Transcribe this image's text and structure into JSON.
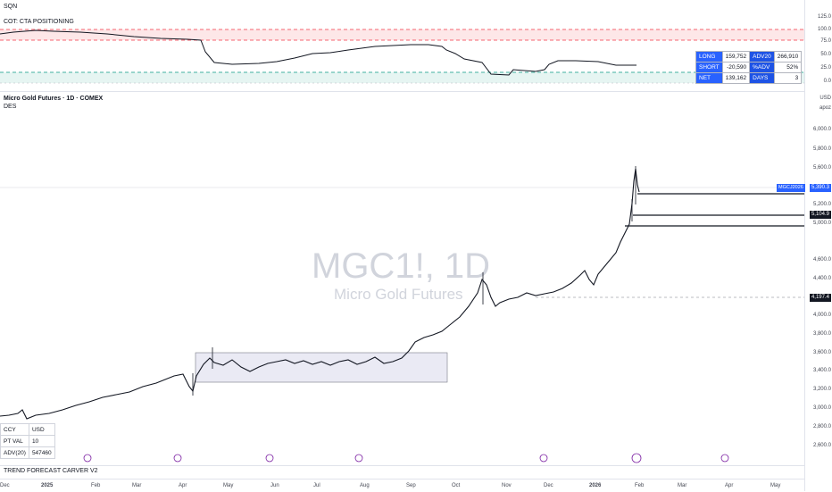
{
  "top_label": "SQN",
  "cot": {
    "title": "COT: CTA POSITIONING",
    "axis": [
      "125.0",
      "100.0",
      "75.0",
      "50.0",
      "25.0",
      "0.0"
    ],
    "table": [
      {
        "k1": "LONG",
        "v1": "159,752",
        "k2": "ADV20",
        "v2": "266,910"
      },
      {
        "k1": "SHORT",
        "v1": "-20,590",
        "k2": "%ADV",
        "v2": "52%"
      },
      {
        "k1": "NET",
        "v1": "139,162",
        "k2": "DAYS",
        "v2": "3"
      }
    ]
  },
  "main": {
    "title": "Micro Gold Futures · 1D · COMEX",
    "subtitle": "DES",
    "currency": "USD",
    "scale_mode": "apoz",
    "watermark_symbol": "MGC1!, 1D",
    "watermark_name": "Micro Gold Futures",
    "price_axis": [
      "6,000.0",
      "5,800.0",
      "5,600.0",
      "5,200.0",
      "5,000.0",
      "4,600.0",
      "4,400.0",
      "4,000.0",
      "3,800.0",
      "3,600.0",
      "3,400.0",
      "3,200.0",
      "3,000.0",
      "2,800.0",
      "2,600.0"
    ],
    "symbol_tag": "MGCJ2026",
    "last_price": "5,390.3",
    "level_1": "5,104.9",
    "level_2": "4,197.4",
    "info_table": [
      {
        "k": "CCY",
        "v": "USD"
      },
      {
        "k": "PT VAL",
        "v": "10"
      },
      {
        "k": "ADV(20)",
        "v": "547460"
      }
    ],
    "indicator_label": "TREND FORECAST CARVER V2"
  },
  "time_axis": [
    "Dec",
    "2025",
    "Feb",
    "Mar",
    "Apr",
    "May",
    "Jun",
    "Jul",
    "Aug",
    "Sep",
    "Oct",
    "Nov",
    "Dec",
    "2026",
    "Feb",
    "Mar",
    "Apr",
    "May"
  ],
  "colors": {
    "up": "#131722",
    "accent": "#2962ff",
    "red_zone": "#f23645",
    "green_zone": "#089981",
    "event": "#7b1fa2"
  }
}
